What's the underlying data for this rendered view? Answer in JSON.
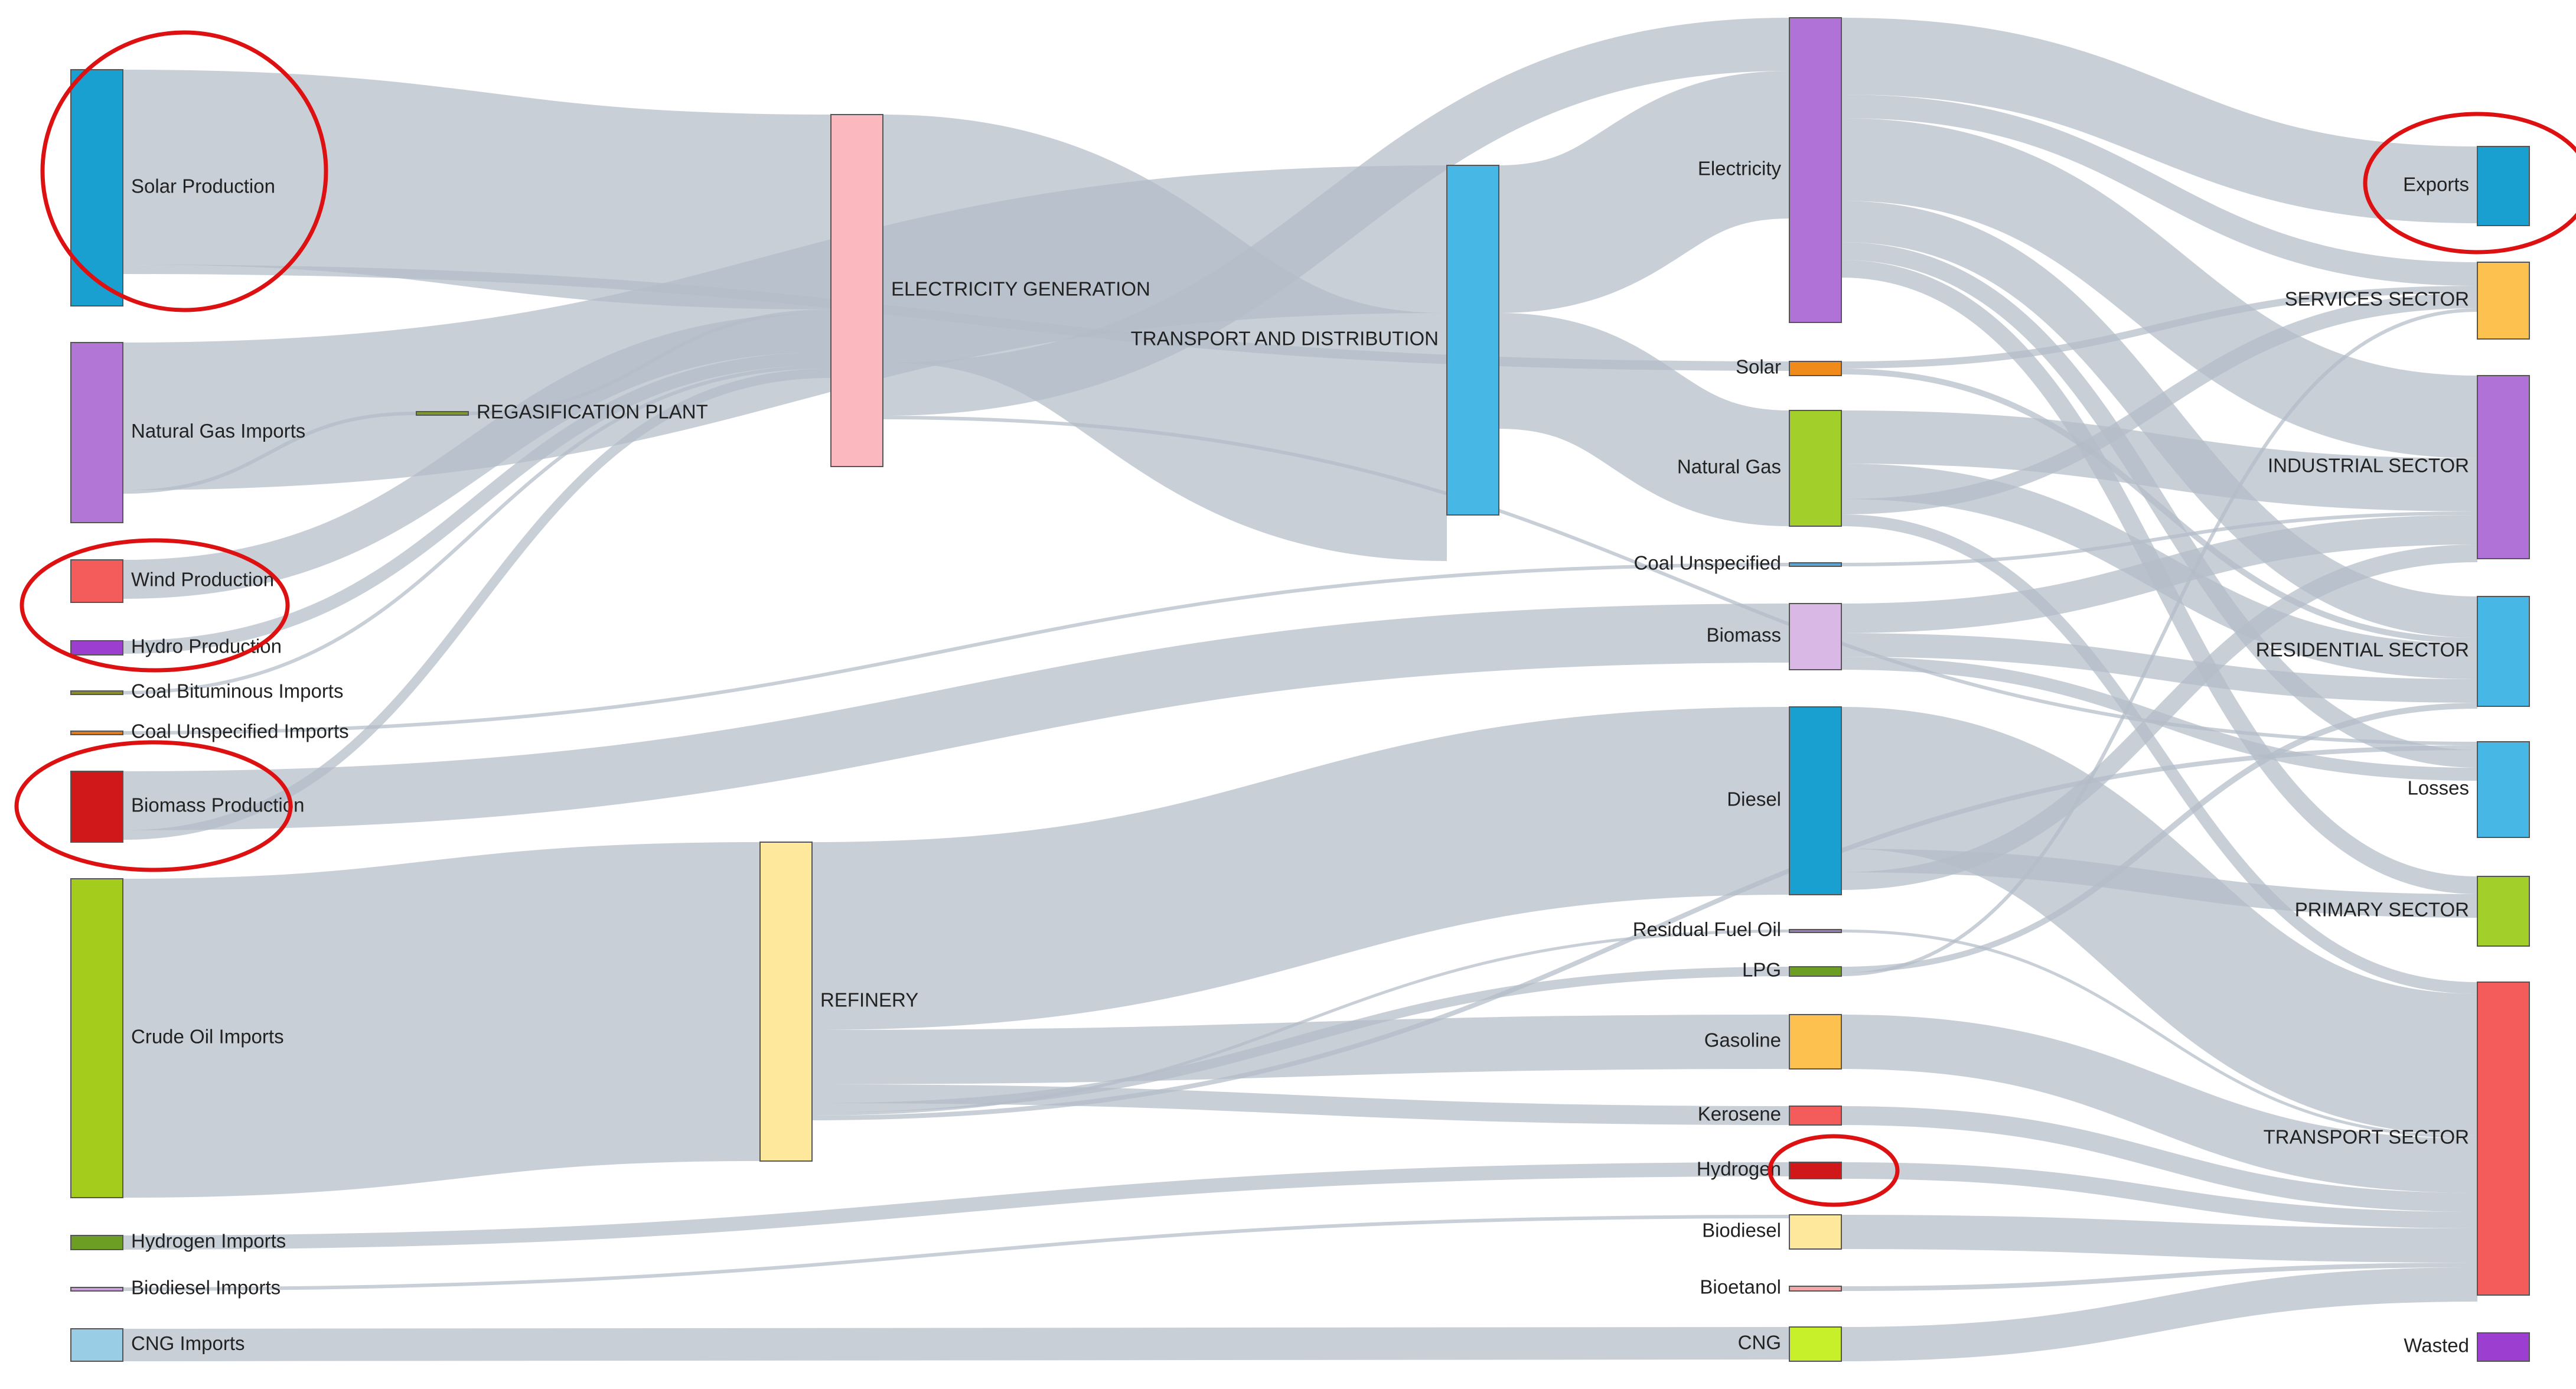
{
  "nodes": [
    {
      "id": "solar_production",
      "label": "Solar Production",
      "color": "#1a9fd1"
    },
    {
      "id": "natural_gas_imports",
      "label": "Natural Gas Imports",
      "color": "#b277d6"
    },
    {
      "id": "wind_production",
      "label": "Wind Production",
      "color": "#f45b5b"
    },
    {
      "id": "hydro_production",
      "label": "Hydro Production",
      "color": "#9c3fd0"
    },
    {
      "id": "coal_bituminous_imports",
      "label": "Coal Bituminous Imports",
      "color": "#8b8b2a"
    },
    {
      "id": "coal_unspecified_imports",
      "label": "Coal Unspecified Imports",
      "color": "#e07b1f"
    },
    {
      "id": "biomass_production",
      "label": "Biomass Production",
      "color": "#d0181b"
    },
    {
      "id": "crude_oil_imports",
      "label": "Crude Oil Imports",
      "color": "#a3cc1c"
    },
    {
      "id": "hydrogen_imports",
      "label": "Hydrogen Imports",
      "color": "#6d9e24"
    },
    {
      "id": "biodiesel_imports",
      "label": "Biodiesel Imports",
      "color": "#c9a0dc"
    },
    {
      "id": "cng_imports",
      "label": "CNG Imports",
      "color": "#99cde6"
    },
    {
      "id": "regasification_plant",
      "label": "REGASIFICATION PLANT",
      "color": "#7a9a2a"
    },
    {
      "id": "electricity_generation",
      "label": "ELECTRICITY GENERATION",
      "color": "#fbb9bf"
    },
    {
      "id": "refinery",
      "label": "REFINERY",
      "color": "#fde89b"
    },
    {
      "id": "transport_distribution",
      "label": "TRANSPORT AND DISTRIBUTION",
      "color": "#47b8e6"
    },
    {
      "id": "electricity",
      "label": "Electricity",
      "color": "#b072d6"
    },
    {
      "id": "solar",
      "label": "Solar",
      "color": "#f08a1a"
    },
    {
      "id": "natural_gas",
      "label": "Natural Gas",
      "color": "#a2cf2a"
    },
    {
      "id": "coal_unspecified",
      "label": "Coal Unspecified",
      "color": "#5aa7d6"
    },
    {
      "id": "biomass",
      "label": "Biomass",
      "color": "#d9b8e6"
    },
    {
      "id": "diesel",
      "label": "Diesel",
      "color": "#1a9fd1"
    },
    {
      "id": "residual_fuel_oil",
      "label": "Residual Fuel Oil",
      "color": "#9d7bbd"
    },
    {
      "id": "lpg",
      "label": "LPG",
      "color": "#6d9e24"
    },
    {
      "id": "gasoline",
      "label": "Gasoline",
      "color": "#fcc14f"
    },
    {
      "id": "kerosene",
      "label": "Kerosene",
      "color": "#f45b5b"
    },
    {
      "id": "hydrogen",
      "label": "Hydrogen",
      "color": "#d0181b"
    },
    {
      "id": "biodiesel",
      "label": "Biodiesel",
      "color": "#fde89b"
    },
    {
      "id": "bioetanol",
      "label": "Bioetanol",
      "color": "#f2a8a8"
    },
    {
      "id": "cng",
      "label": "CNG",
      "color": "#c8f02a"
    },
    {
      "id": "exports",
      "label": "Exports",
      "color": "#1a9fd1"
    },
    {
      "id": "services_sector",
      "label": "SERVICES SECTOR",
      "color": "#fcc14f"
    },
    {
      "id": "industrial_sector",
      "label": "INDUSTRIAL SECTOR",
      "color": "#b072d6"
    },
    {
      "id": "residential_sector",
      "label": "RESIDENTIAL SECTOR",
      "color": "#47b8e6"
    },
    {
      "id": "losses",
      "label": "Losses",
      "color": "#47b8e6"
    },
    {
      "id": "primary_sector",
      "label": "PRIMARY SECTOR",
      "color": "#a2cf2a"
    },
    {
      "id": "transport_sector",
      "label": "TRANSPORT SECTOR",
      "color": "#f45b5b"
    },
    {
      "id": "wasted",
      "label": "Wasted",
      "color": "#9c3fd0"
    }
  ],
  "links": [
    [
      "solar_production",
      "electricity_generation"
    ],
    [
      "solar_production",
      "solar"
    ],
    [
      "natural_gas_imports",
      "transport_distribution"
    ],
    [
      "natural_gas_imports",
      "regasification_plant"
    ],
    [
      "regasification_plant",
      "electricity_generation"
    ],
    [
      "wind_production",
      "electricity_generation"
    ],
    [
      "hydro_production",
      "electricity_generation"
    ],
    [
      "coal_bituminous_imports",
      "electricity_generation"
    ],
    [
      "coal_unspecified_imports",
      "coal_unspecified"
    ],
    [
      "biomass_production",
      "biomass"
    ],
    [
      "biomass_production",
      "electricity_generation"
    ],
    [
      "crude_oil_imports",
      "refinery"
    ],
    [
      "hydrogen_imports",
      "hydrogen"
    ],
    [
      "biodiesel_imports",
      "biodiesel"
    ],
    [
      "cng_imports",
      "cng"
    ],
    [
      "electricity_generation",
      "transport_distribution"
    ],
    [
      "electricity_generation",
      "electricity"
    ],
    [
      "electricity_generation",
      "losses"
    ],
    [
      "transport_distribution",
      "electricity"
    ],
    [
      "transport_distribution",
      "natural_gas"
    ],
    [
      "refinery",
      "diesel"
    ],
    [
      "refinery",
      "gasoline"
    ],
    [
      "refinery",
      "kerosene"
    ],
    [
      "refinery",
      "lpg"
    ],
    [
      "refinery",
      "residual_fuel_oil"
    ],
    [
      "refinery",
      "losses"
    ],
    [
      "electricity",
      "exports"
    ],
    [
      "electricity",
      "services_sector"
    ],
    [
      "electricity",
      "industrial_sector"
    ],
    [
      "electricity",
      "residential_sector"
    ],
    [
      "electricity",
      "losses"
    ],
    [
      "electricity",
      "primary_sector"
    ],
    [
      "solar",
      "services_sector"
    ],
    [
      "solar",
      "residential_sector"
    ],
    [
      "natural_gas",
      "industrial_sector"
    ],
    [
      "natural_gas",
      "residential_sector"
    ],
    [
      "natural_gas",
      "services_sector"
    ],
    [
      "natural_gas",
      "transport_sector"
    ],
    [
      "coal_unspecified",
      "industrial_sector"
    ],
    [
      "biomass",
      "industrial_sector"
    ],
    [
      "biomass",
      "residential_sector"
    ],
    [
      "biomass",
      "losses"
    ],
    [
      "diesel",
      "transport_sector"
    ],
    [
      "diesel",
      "primary_sector"
    ],
    [
      "diesel",
      "industrial_sector"
    ],
    [
      "residual_fuel_oil",
      "transport_sector"
    ],
    [
      "lpg",
      "residential_sector"
    ],
    [
      "lpg",
      "services_sector"
    ],
    [
      "gasoline",
      "transport_sector"
    ],
    [
      "kerosene",
      "transport_sector"
    ],
    [
      "hydrogen",
      "transport_sector"
    ],
    [
      "biodiesel",
      "transport_sector"
    ],
    [
      "bioetanol",
      "transport_sector"
    ],
    [
      "cng",
      "transport_sector"
    ]
  ],
  "highlights": [
    "solar_production",
    "wind_hydro",
    "biomass_production",
    "exports",
    "hydrogen"
  ],
  "colors": {
    "flow": "#b3bcc8",
    "highlight": "#dd1111"
  }
}
